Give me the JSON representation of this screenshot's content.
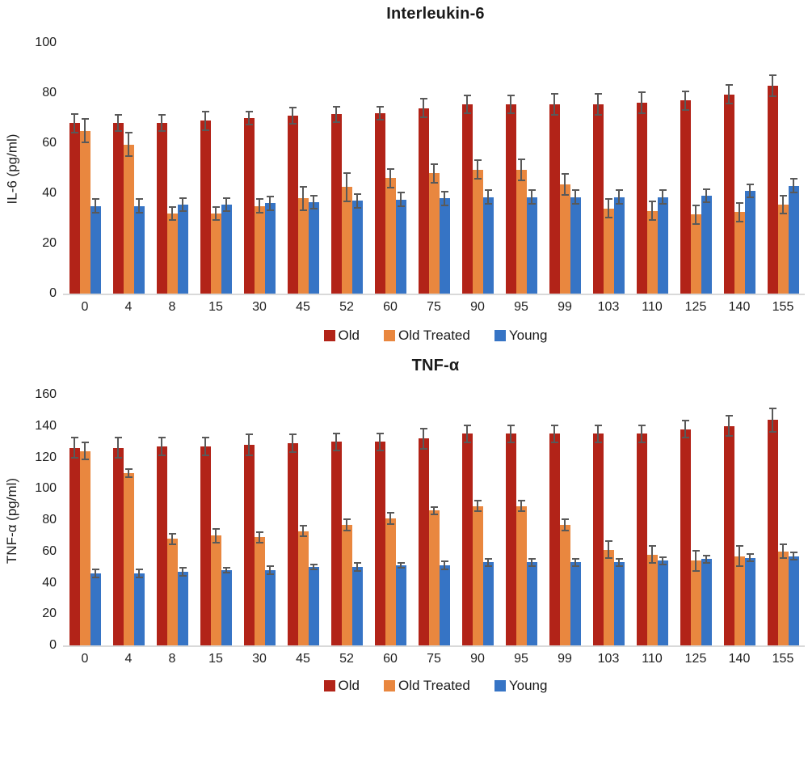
{
  "styles": {
    "error_bar_color": "#595959",
    "axis_line_color": "#d9d9d9",
    "text_color": "#1f1f1f"
  },
  "chart_data": [
    {
      "type": "bar",
      "title": "Interleukin-6",
      "ylabel": "IL-6 (pg/ml)",
      "xlabel": "",
      "categories": [
        "0",
        "4",
        "8",
        "15",
        "30",
        "45",
        "52",
        "60",
        "75",
        "90",
        "95",
        "99",
        "103",
        "110",
        "125",
        "140",
        "155"
      ],
      "ylim": [
        0,
        100
      ],
      "yticks": [
        0,
        20,
        40,
        60,
        80,
        100
      ],
      "grid": false,
      "error_bars": true,
      "legend_position": "bottom",
      "series": [
        {
          "name": "Old",
          "color": "#b22318",
          "values": [
            68,
            68,
            68,
            69,
            70,
            71,
            71.5,
            72,
            74,
            75.5,
            75.5,
            75.5,
            75.5,
            76,
            77,
            79.5,
            83
          ],
          "errors": [
            4,
            3.5,
            3.5,
            4,
            3,
            3.5,
            3.5,
            3,
            4,
            4,
            4,
            4.5,
            4.5,
            4.5,
            4,
            4,
            4.5
          ]
        },
        {
          "name": "Old Treated",
          "color": "#e9873f",
          "values": [
            65,
            59.5,
            32,
            32,
            35,
            38,
            42.5,
            46,
            48,
            49.5,
            49.5,
            43.5,
            34,
            33,
            31.5,
            32.5,
            35.5
          ],
          "errors": [
            5,
            5,
            3,
            3,
            3,
            5,
            6,
            4,
            4,
            4,
            4.5,
            4.5,
            4,
            4,
            4,
            4,
            4
          ]
        },
        {
          "name": "Young",
          "color": "#3674c5",
          "values": [
            35,
            35,
            35.5,
            35.5,
            36,
            36.5,
            37,
            37.5,
            38,
            38.5,
            38.5,
            38.5,
            38.5,
            38.5,
            39,
            41,
            43
          ],
          "errors": [
            3,
            3,
            3,
            3,
            3,
            3,
            3,
            3,
            3,
            3,
            3,
            3,
            3,
            3,
            3,
            3,
            3
          ]
        }
      ]
    },
    {
      "type": "bar",
      "title": "TNF-α",
      "ylabel": "TNF-α (pg/ml)",
      "xlabel": "",
      "categories": [
        "0",
        "4",
        "8",
        "15",
        "30",
        "45",
        "52",
        "60",
        "75",
        "90",
        "95",
        "99",
        "103",
        "110",
        "125",
        "140",
        "155"
      ],
      "ylim": [
        0,
        160
      ],
      "yticks": [
        0,
        20,
        40,
        60,
        80,
        100,
        120,
        140,
        160
      ],
      "grid": false,
      "error_bars": true,
      "legend_position": "bottom",
      "series": [
        {
          "name": "Old",
          "color": "#b22318",
          "values": [
            126,
            126,
            127,
            127,
            128,
            129,
            130,
            130,
            132,
            135,
            135,
            135,
            135,
            135,
            138,
            140,
            144
          ],
          "errors": [
            7,
            7,
            6,
            6,
            7,
            6,
            6,
            6,
            7,
            6,
            6,
            6,
            6,
            6,
            6,
            7,
            8
          ]
        },
        {
          "name": "Old Treated",
          "color": "#e9873f",
          "values": [
            124,
            110,
            68,
            70,
            69,
            73,
            77,
            81,
            86,
            89,
            89,
            77,
            61,
            58,
            54,
            57,
            60
          ],
          "errors": [
            6,
            3,
            4,
            5,
            4,
            4,
            4,
            4,
            3,
            4,
            4,
            4,
            6,
            6,
            7,
            7,
            5
          ]
        },
        {
          "name": "Young",
          "color": "#3674c5",
          "values": [
            46,
            46,
            47,
            48,
            48,
            50,
            50,
            51,
            51,
            53,
            53,
            53,
            53,
            54,
            55,
            56,
            57
          ],
          "errors": [
            3,
            3,
            3,
            2,
            3,
            2,
            3,
            2,
            3,
            3,
            3,
            3,
            3,
            3,
            3,
            3,
            3
          ]
        }
      ]
    }
  ]
}
